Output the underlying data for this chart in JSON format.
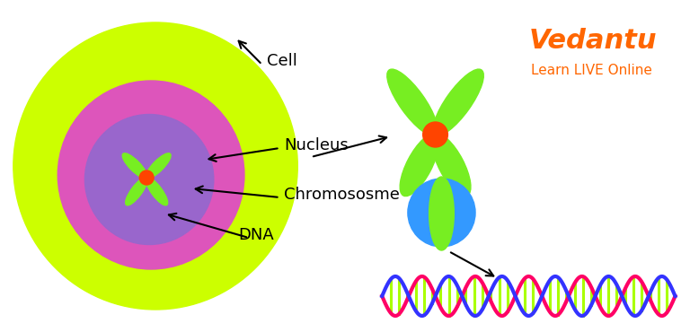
{
  "bg_color": "#ffffff",
  "cell_color": "#ccff00",
  "nucleus_outer_color": "#dd55bb",
  "nucleus_inner_color": "#9966cc",
  "chromosome_color": "#77ee22",
  "centromere_color": "#ff4400",
  "telomere_color": "#3399ff",
  "dna_backbone1": "#ff0066",
  "dna_backbone2": "#3333ff",
  "dna_rung": "#aaff00",
  "vedantu_color": "#ff6600",
  "label_cell": "Cell",
  "label_nucleus": "Nucleus",
  "label_chromosome": "Chromososme",
  "label_dna": "DNA",
  "vedantu_text": "Vedantu",
  "vedantu_sub": "Learn LIVE Online",
  "fig_w": 7.68,
  "fig_h": 3.7
}
